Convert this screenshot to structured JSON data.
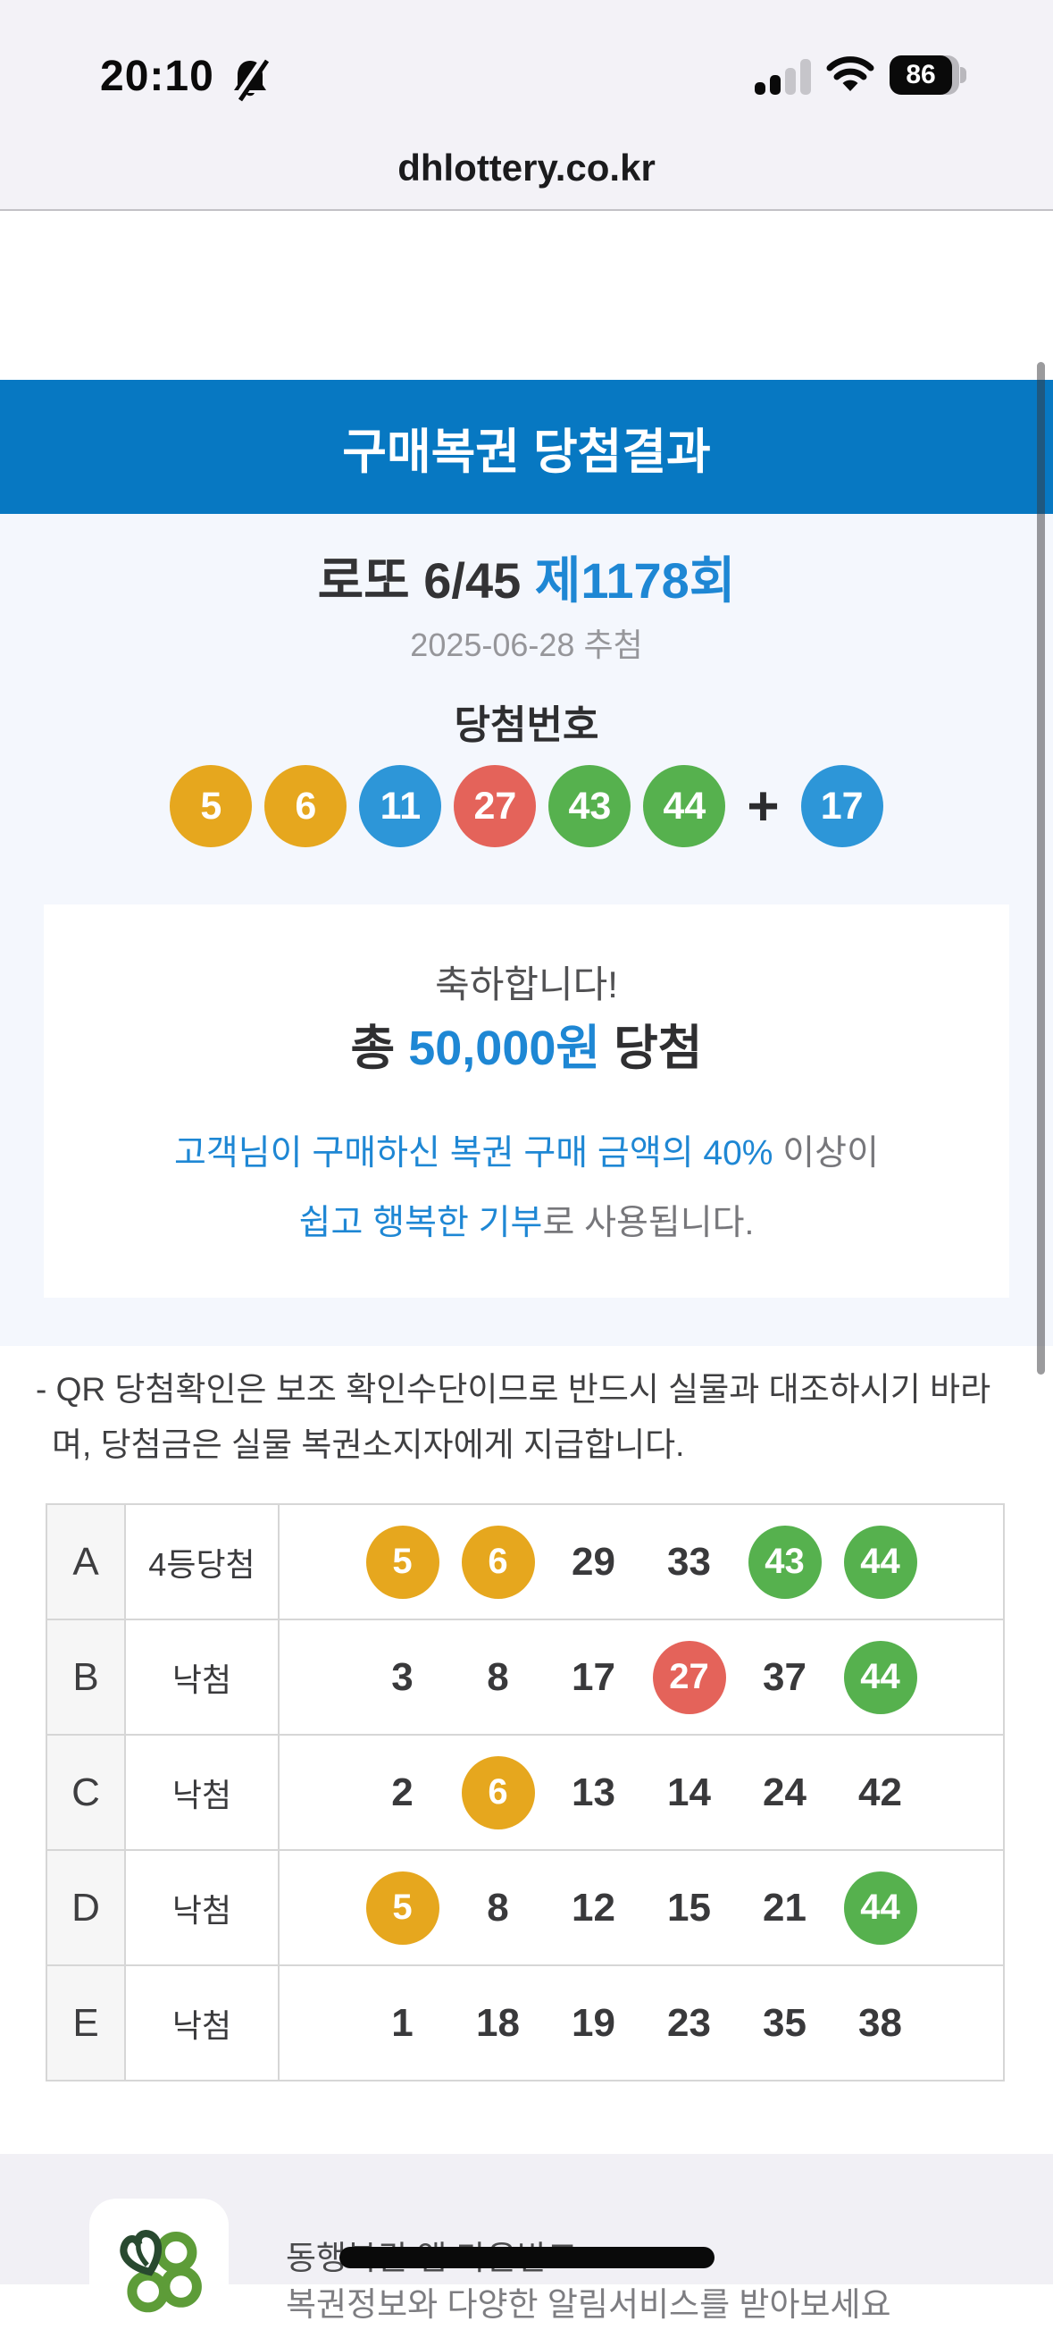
{
  "status_bar": {
    "time": "20:10",
    "battery_percent": "86"
  },
  "url_bar": {
    "domain": "dhlottery.co.kr"
  },
  "header": {
    "brand": "동행복권"
  },
  "banner": {
    "title": "구매복권 당첨결과"
  },
  "draw": {
    "title_game": "로또 6/45 ",
    "title_round": "제1178회",
    "date": "2025-06-28 추첨",
    "numbers_label": "당첨번호",
    "plus": "+",
    "numbers": [
      {
        "n": "5",
        "color": "yellow"
      },
      {
        "n": "6",
        "color": "yellow"
      },
      {
        "n": "11",
        "color": "blue"
      },
      {
        "n": "27",
        "color": "red"
      },
      {
        "n": "43",
        "color": "green"
      },
      {
        "n": "44",
        "color": "green"
      }
    ],
    "bonus": {
      "n": "17",
      "color": "blue"
    }
  },
  "result_card": {
    "congrats": "축하합니다!",
    "amount_prefix": "총 ",
    "amount": "50,000원",
    "amount_suffix": " 당첨",
    "message_line1_blue": "고객님이 구매하신 복권 구매 금액의 40%",
    "message_line1_gray": " 이상이",
    "message_line2_blue": "쉽고 행복한 기부",
    "message_line2_gray": "로 사용됩니다."
  },
  "notice": {
    "text": "- QR 당첨확인은 보조 확인수단이므로 반드시 실물과 대조하시기 바라며, 당첨금은 실물 복권소지자에게 지급합니다."
  },
  "table": {
    "rows": [
      {
        "slot": "A",
        "result": "4등당첨",
        "numbers": [
          {
            "n": "5",
            "ball": "yellow"
          },
          {
            "n": "6",
            "ball": "yellow"
          },
          {
            "n": "29",
            "ball": null
          },
          {
            "n": "33",
            "ball": null
          },
          {
            "n": "43",
            "ball": "green"
          },
          {
            "n": "44",
            "ball": "green"
          }
        ]
      },
      {
        "slot": "B",
        "result": "낙첨",
        "numbers": [
          {
            "n": "3",
            "ball": null
          },
          {
            "n": "8",
            "ball": null
          },
          {
            "n": "17",
            "ball": null
          },
          {
            "n": "27",
            "ball": "red"
          },
          {
            "n": "37",
            "ball": null
          },
          {
            "n": "44",
            "ball": "green"
          }
        ]
      },
      {
        "slot": "C",
        "result": "낙첨",
        "numbers": [
          {
            "n": "2",
            "ball": null
          },
          {
            "n": "6",
            "ball": "yellow"
          },
          {
            "n": "13",
            "ball": null
          },
          {
            "n": "14",
            "ball": null
          },
          {
            "n": "24",
            "ball": null
          },
          {
            "n": "42",
            "ball": null
          }
        ]
      },
      {
        "slot": "D",
        "result": "낙첨",
        "numbers": [
          {
            "n": "5",
            "ball": "yellow"
          },
          {
            "n": "8",
            "ball": null
          },
          {
            "n": "12",
            "ball": null
          },
          {
            "n": "15",
            "ball": null
          },
          {
            "n": "21",
            "ball": null
          },
          {
            "n": "44",
            "ball": "green"
          }
        ]
      },
      {
        "slot": "E",
        "result": "낙첨",
        "numbers": [
          {
            "n": "1",
            "ball": null
          },
          {
            "n": "18",
            "ball": null
          },
          {
            "n": "19",
            "ball": null
          },
          {
            "n": "23",
            "ball": null
          },
          {
            "n": "35",
            "ball": null
          },
          {
            "n": "38",
            "ball": null
          }
        ]
      }
    ]
  },
  "footer": {
    "app_title": "동행복권 앱 다운받고",
    "app_subtitle": "복권정보와 다양한 알림서비스를 받아보세요"
  },
  "colors": {
    "banner_blue": "#0778c2",
    "accent_blue": "#1e87d4",
    "ball_yellow": "#e6a71e",
    "ball_blue": "#2d96d8",
    "ball_red": "#e4635a",
    "ball_green": "#56b14e"
  }
}
